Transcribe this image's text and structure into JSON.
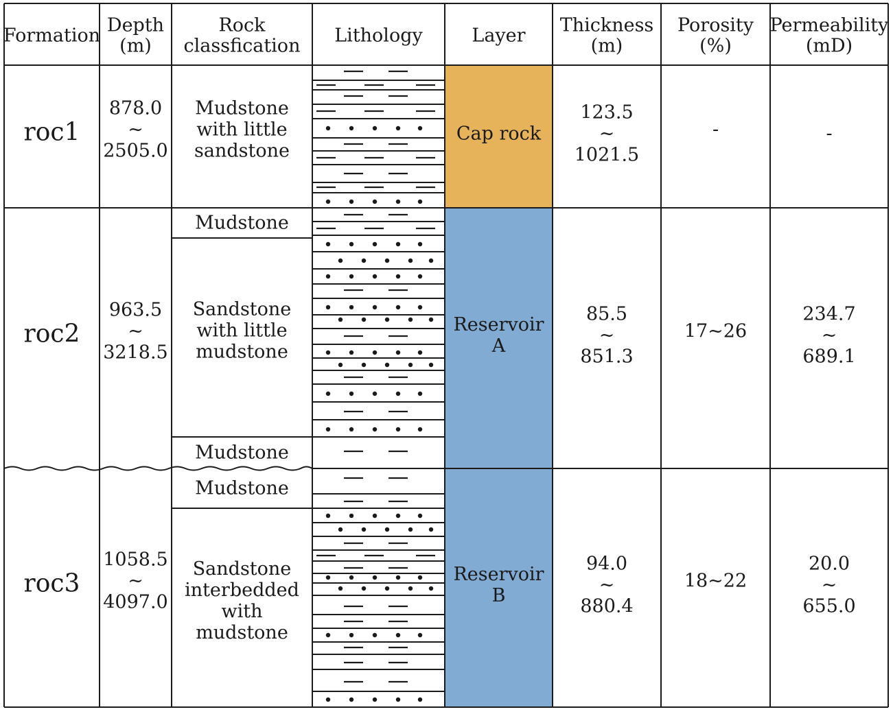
{
  "headers": [
    {
      "lines": [
        "Formation"
      ]
    },
    {
      "lines": [
        "Depth",
        "(m)"
      ]
    },
    {
      "lines": [
        "Rock",
        "classfication"
      ]
    },
    {
      "lines": [
        "Lithology"
      ]
    },
    {
      "lines": [
        "Layer"
      ]
    },
    {
      "lines": [
        "Thickness",
        "(m)"
      ]
    },
    {
      "lines": [
        "Porosity",
        "(%)"
      ]
    },
    {
      "lines": [
        "Permeability",
        "(mD)"
      ]
    }
  ],
  "formations": [
    {
      "name": "roc1",
      "depth": [
        "878.0",
        "~",
        "2505.0"
      ],
      "classes": [
        {
          "lines": [
            "Mudstone",
            "with little",
            "sandstone"
          ]
        }
      ],
      "layer": {
        "lines": [
          "Cap rock"
        ],
        "color": "#e6b25a"
      },
      "thickness": [
        "123.5",
        "~",
        "1021.5"
      ],
      "porosity": [
        "-"
      ],
      "permeability": [
        "-"
      ]
    },
    {
      "name": "roc2",
      "depth": [
        "963.5",
        "~",
        "3218.5"
      ],
      "classes": [
        {
          "lines": [
            "Mudstone"
          ]
        },
        {
          "lines": [
            "Sandstone",
            "with little",
            "mudstone"
          ]
        },
        {
          "lines": [
            "Mudstone"
          ]
        }
      ],
      "layer": {
        "lines": [
          "Reservoir",
          "A"
        ],
        "color": "#81abd3"
      },
      "thickness": [
        "85.5",
        "~",
        "851.3"
      ],
      "porosity": [
        "17~26"
      ],
      "permeability": [
        "234.7",
        "~",
        "689.1"
      ]
    },
    {
      "name": "roc3",
      "depth": [
        "1058.5",
        "~",
        "4097.0"
      ],
      "classes": [
        {
          "lines": [
            "Mudstone"
          ]
        },
        {
          "lines": [
            "Sandstone",
            "interbedded",
            "with",
            "mudstone"
          ]
        }
      ],
      "layer": {
        "lines": [
          "Reservoir",
          "B"
        ],
        "color": "#81abd3"
      },
      "thickness": [
        "94.0",
        "~",
        "880.4"
      ],
      "porosity": [
        "18~22"
      ],
      "permeability": [
        "20.0",
        "~",
        "655.0"
      ]
    }
  ]
}
